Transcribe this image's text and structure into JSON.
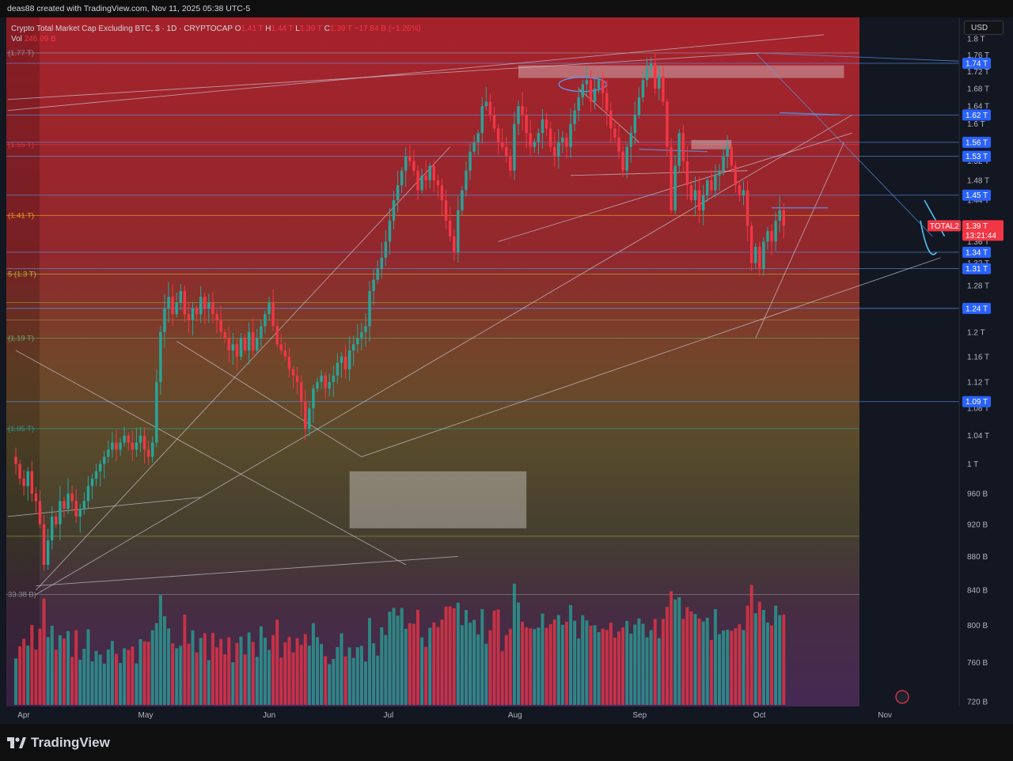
{
  "header": {
    "credit": "deas88 created with TradingView.com, Nov 11, 2025 05:38 UTC-5"
  },
  "legend": {
    "title": "Crypto Total Market Cap Excluding BTC, $ · 1D · CRYPTOCAP",
    "o_label": "O",
    "o_value": "1.41 T",
    "h_label": "H",
    "h_value": "1.44 T",
    "l_label": "L",
    "l_value": "1.39 T",
    "c_label": "C",
    "c_value": "1.39 T",
    "change": "−17.84 B (−1.26%)",
    "vol_label": "Vol",
    "vol_value": "246.09 B"
  },
  "currency": "USD",
  "brand": "TradingView",
  "colors": {
    "up": "#26a69a",
    "down": "#f23645",
    "grid": "#1e2129",
    "text": "#d1d4dc",
    "accent": "#2962ff",
    "background": "#131722"
  },
  "chart_data": {
    "type": "candlestick",
    "title": "Crypto Total Market Cap Excluding BTC, $ · 1D · CRYPTOCAP",
    "price_scale": "log",
    "ylim": [
      0.7,
      1.82
    ],
    "y_ticks": [
      {
        "v": 1.8,
        "label": "1.8 T"
      },
      {
        "v": 1.76,
        "label": "1.76 T"
      },
      {
        "v": 1.72,
        "label": "1.72 T"
      },
      {
        "v": 1.68,
        "label": "1.68 T"
      },
      {
        "v": 1.64,
        "label": "1.64 T"
      },
      {
        "v": 1.6,
        "label": "1.6 T"
      },
      {
        "v": 1.52,
        "label": "1.52 T"
      },
      {
        "v": 1.48,
        "label": "1.48 T"
      },
      {
        "v": 1.44,
        "label": "1.44 T"
      },
      {
        "v": 1.36,
        "label": "1.36 T"
      },
      {
        "v": 1.32,
        "label": "1.32 T"
      },
      {
        "v": 1.28,
        "label": "1.28 T"
      },
      {
        "v": 1.2,
        "label": "1.2 T"
      },
      {
        "v": 1.16,
        "label": "1.16 T"
      },
      {
        "v": 1.12,
        "label": "1.12 T"
      },
      {
        "v": 1.08,
        "label": "1.08 T"
      },
      {
        "v": 1.04,
        "label": "1.04 T"
      },
      {
        "v": 1.0,
        "label": "1 T"
      },
      {
        "v": 0.96,
        "label": "960 B"
      },
      {
        "v": 0.92,
        "label": "920 B"
      },
      {
        "v": 0.88,
        "label": "880 B"
      },
      {
        "v": 0.84,
        "label": "840 B"
      },
      {
        "v": 0.8,
        "label": "800 B"
      },
      {
        "v": 0.76,
        "label": "760 B"
      },
      {
        "v": 0.72,
        "label": "720 B"
      }
    ],
    "x_ticks": [
      {
        "d": 2,
        "label": "Apr"
      },
      {
        "d": 32,
        "label": "May"
      },
      {
        "d": 63,
        "label": "Jun"
      },
      {
        "d": 93,
        "label": "Jul"
      },
      {
        "d": 124,
        "label": "Aug"
      },
      {
        "d": 155,
        "label": "Sep"
      },
      {
        "d": 185,
        "label": "Oct"
      },
      {
        "d": 216,
        "label": "Nov"
      }
    ],
    "highlighted_levels": [
      {
        "v": 1.74,
        "label": "1.74 T"
      },
      {
        "v": 1.62,
        "label": "1.62 T"
      },
      {
        "v": 1.56,
        "label": "1.56 T"
      },
      {
        "v": 1.53,
        "label": "1.53 T"
      },
      {
        "v": 1.45,
        "label": "1.45 T"
      },
      {
        "v": 1.34,
        "label": "1.34 T"
      },
      {
        "v": 1.31,
        "label": "1.31 T"
      },
      {
        "v": 1.24,
        "label": "1.24 T"
      },
      {
        "v": 1.09,
        "label": "1.09 T"
      }
    ],
    "last_price": {
      "symbol": "TOTAL2",
      "value": 1.39,
      "label": "1.39 T",
      "countdown": "13:21:44"
    },
    "fib_levels": [
      {
        "v": 1.765,
        "label": "(1.77 T)",
        "color": "#9598a1"
      },
      {
        "v": 1.555,
        "label": "(1.55 T)",
        "color": "#f23645"
      },
      {
        "v": 1.41,
        "label": "(1.41 T)",
        "color": "#ffa726"
      },
      {
        "v": 1.3,
        "label": "5 (1.3 T)",
        "color": "#c0ca33"
      },
      {
        "v": 1.19,
        "label": "(1.19 T)",
        "color": "#66bb6a"
      },
      {
        "v": 1.05,
        "label": "(1.05 T)",
        "color": "#26a69a"
      },
      {
        "v": 0.835,
        "label": "33.38 B)",
        "color": "#9598a1"
      }
    ],
    "series": [
      {
        "name": "TOTAL2",
        "type": "ohlc_daily_close",
        "start": "Apr 1",
        "closes": [
          1.0,
          0.98,
          0.97,
          0.99,
          0.96,
          0.95,
          0.92,
          0.87,
          0.9,
          0.93,
          0.92,
          0.95,
          0.94,
          0.96,
          0.95,
          0.93,
          0.94,
          0.95,
          0.97,
          0.98,
          0.99,
          1.0,
          1.01,
          1.02,
          1.03,
          1.02,
          1.03,
          1.04,
          1.03,
          1.02,
          1.03,
          1.04,
          1.02,
          1.01,
          1.03,
          1.12,
          1.2,
          1.24,
          1.26,
          1.23,
          1.25,
          1.27,
          1.23,
          1.22,
          1.24,
          1.23,
          1.26,
          1.24,
          1.25,
          1.23,
          1.22,
          1.2,
          1.19,
          1.17,
          1.18,
          1.16,
          1.19,
          1.17,
          1.2,
          1.17,
          1.19,
          1.21,
          1.23,
          1.25,
          1.21,
          1.18,
          1.17,
          1.16,
          1.14,
          1.13,
          1.12,
          1.09,
          1.05,
          1.08,
          1.11,
          1.12,
          1.13,
          1.11,
          1.12,
          1.13,
          1.15,
          1.16,
          1.14,
          1.17,
          1.18,
          1.19,
          1.2,
          1.21,
          1.27,
          1.29,
          1.31,
          1.33,
          1.36,
          1.4,
          1.44,
          1.47,
          1.5,
          1.53,
          1.52,
          1.5,
          1.46,
          1.49,
          1.48,
          1.51,
          1.48,
          1.47,
          1.44,
          1.4,
          1.37,
          1.34,
          1.42,
          1.46,
          1.5,
          1.54,
          1.56,
          1.58,
          1.64,
          1.65,
          1.62,
          1.59,
          1.56,
          1.55,
          1.53,
          1.5,
          1.6,
          1.64,
          1.62,
          1.58,
          1.55,
          1.56,
          1.58,
          1.61,
          1.59,
          1.55,
          1.53,
          1.56,
          1.57,
          1.55,
          1.6,
          1.63,
          1.66,
          1.69,
          1.7,
          1.65,
          1.68,
          1.7,
          1.67,
          1.63,
          1.59,
          1.57,
          1.54,
          1.5,
          1.55,
          1.58,
          1.62,
          1.66,
          1.7,
          1.73,
          1.74,
          1.68,
          1.71,
          1.65,
          1.55,
          1.42,
          1.51,
          1.58,
          1.52,
          1.47,
          1.44,
          1.46,
          1.42,
          1.45,
          1.48,
          1.46,
          1.49,
          1.5,
          1.53,
          1.55,
          1.51,
          1.47,
          1.45,
          1.46,
          1.39,
          1.32,
          1.35,
          1.31,
          1.36,
          1.38,
          1.36,
          1.4,
          1.42,
          1.39
        ]
      }
    ],
    "volume": {
      "axis_label": "Vol",
      "last": "246.09 B"
    }
  }
}
